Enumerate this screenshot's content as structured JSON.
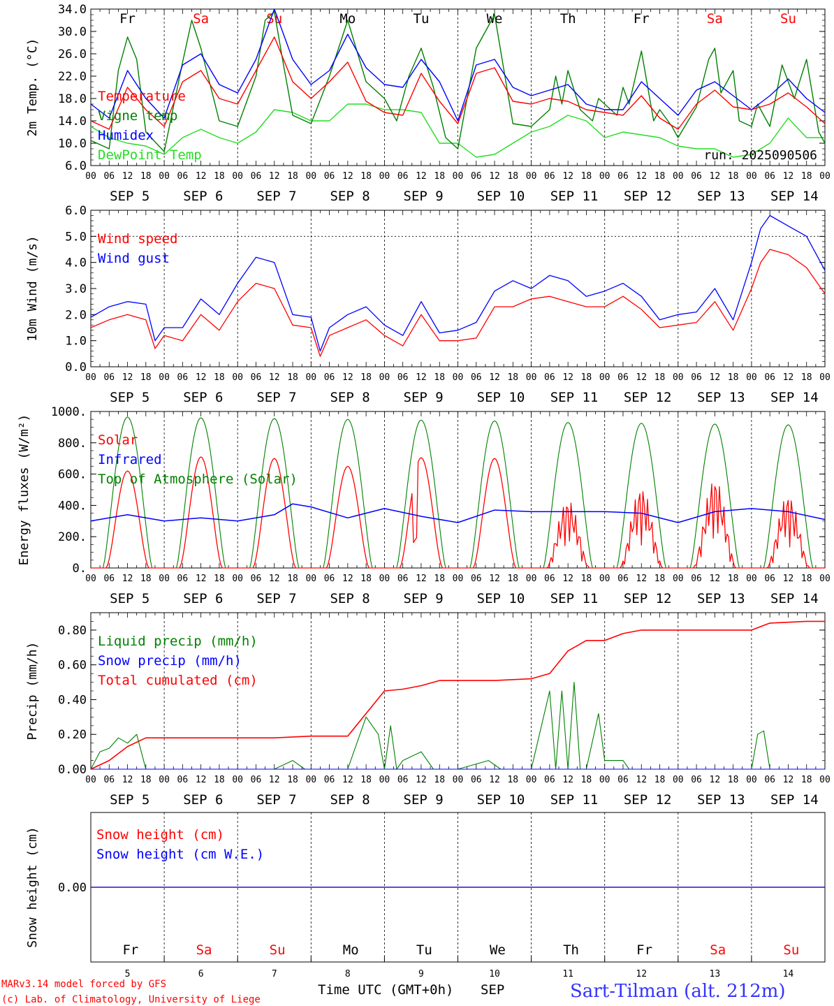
{
  "days": [
    "SEP 5",
    "SEP 6",
    "SEP 7",
    "SEP 8",
    "SEP 9",
    "SEP 10",
    "SEP 11",
    "SEP 12",
    "SEP 13",
    "SEP 14"
  ],
  "weekdays": [
    {
      "label": "Fr",
      "weekend": false
    },
    {
      "label": "Sa",
      "weekend": true
    },
    {
      "label": "Su",
      "weekend": true
    },
    {
      "label": "Mo",
      "weekend": false
    },
    {
      "label": "Tu",
      "weekend": false
    },
    {
      "label": "We",
      "weekend": false
    },
    {
      "label": "Th",
      "weekend": false
    },
    {
      "label": "Fr",
      "weekend": false
    },
    {
      "label": "Sa",
      "weekend": true
    },
    {
      "label": "Su",
      "weekend": true
    }
  ],
  "hour_ticks": [
    "00",
    "06",
    "12",
    "18"
  ],
  "run_label": "run: 2025090506",
  "footer": {
    "credit_1": "MARv3.14 model forced by GFS",
    "credit_2": "(c) Lab. of Climatology, University of Liege",
    "axis_title": "Time UTC (GMT+0h)",
    "month": "SEP",
    "station": "Sart-Tilman (alt. 212m)",
    "day_numbers": [
      "5",
      "6",
      "7",
      "8",
      "9",
      "10",
      "11",
      "12",
      "13",
      "14"
    ]
  },
  "colors": {
    "red": "#ff0000",
    "green": "#008000",
    "blue": "#0000ff",
    "lightgreen": "#22dd22",
    "axis": "#000000"
  },
  "chart_data": [
    {
      "type": "line",
      "ylabel": "2m Temp. (°C)",
      "ylim": [
        6,
        34
      ],
      "yticks": [
        "34.0",
        "30.0",
        "26.0",
        "22.0",
        "18.0",
        "14.0",
        "10.0",
        "6.0"
      ],
      "x_unit": "hours since 00 UTC SEP 5",
      "series": [
        {
          "name": "Temperature",
          "color": "#ff0000",
          "x": [
            0,
            6,
            12,
            18,
            24,
            30,
            36,
            42,
            48,
            54,
            60,
            66,
            72,
            78,
            84,
            90,
            96,
            102,
            108,
            114,
            120,
            126,
            132,
            138,
            144,
            150,
            156,
            162,
            168,
            174,
            180,
            186,
            192,
            198,
            204,
            210,
            216,
            222,
            228,
            234,
            240
          ],
          "y": [
            14,
            12.5,
            20,
            16,
            13,
            21,
            23,
            18,
            17,
            23,
            29,
            21,
            18,
            21,
            24.5,
            17.5,
            15.5,
            15,
            22.5,
            17.5,
            13.5,
            22.5,
            23.5,
            17.5,
            17,
            18,
            17.5,
            16,
            15.5,
            15,
            18.5,
            14.5,
            12.5,
            17,
            19.5,
            16.5,
            16,
            17,
            19,
            16.5,
            13.5
          ]
        },
        {
          "name": "Vigne temp",
          "color": "#008000",
          "x": [
            0,
            6,
            9,
            12,
            15,
            18,
            24,
            30,
            33,
            36,
            42,
            48,
            54,
            57,
            60,
            63,
            66,
            72,
            78,
            84,
            90,
            96,
            100,
            104,
            108,
            112,
            116,
            120,
            126,
            132,
            138,
            144,
            150,
            152,
            154,
            156,
            160,
            164,
            166,
            168,
            172,
            174,
            176,
            180,
            184,
            186,
            190,
            192,
            198,
            202,
            204,
            206,
            210,
            212,
            216,
            218,
            220,
            222,
            226,
            230,
            234,
            238,
            240
          ],
          "y": [
            10.5,
            9,
            23,
            29,
            25,
            12,
            8.5,
            24.5,
            32,
            27,
            14,
            13,
            22,
            32,
            33.5,
            24,
            15,
            13.5,
            22,
            32,
            21,
            18,
            14,
            22,
            27,
            20,
            11,
            9,
            27,
            33,
            13.5,
            13,
            16,
            22,
            17,
            23,
            16,
            14,
            18,
            17,
            15,
            20,
            17,
            26.5,
            14,
            16,
            13,
            11,
            16.5,
            25,
            27,
            19,
            23,
            14,
            13,
            17,
            15,
            13,
            24,
            18,
            25,
            12,
            10
          ]
        },
        {
          "name": "Humidex",
          "color": "#0000ff",
          "x": [
            0,
            6,
            12,
            18,
            24,
            30,
            36,
            42,
            48,
            54,
            60,
            66,
            72,
            78,
            84,
            90,
            96,
            102,
            108,
            114,
            120,
            126,
            132,
            138,
            144,
            150,
            156,
            162,
            168,
            174,
            180,
            186,
            192,
            198,
            204,
            210,
            216,
            222,
            228,
            234,
            240
          ],
          "y": [
            17,
            14.5,
            23,
            18,
            14.5,
            24,
            26,
            20.5,
            19,
            25,
            34,
            25,
            20.5,
            23,
            29.5,
            23.5,
            20.5,
            20,
            25,
            21,
            14,
            24,
            25,
            20,
            18.5,
            19.5,
            20.5,
            17,
            16,
            16,
            21,
            18,
            15,
            19.5,
            21,
            18.5,
            16,
            18.5,
            21.5,
            18,
            15.5
          ]
        },
        {
          "name": "DewPoint Temp",
          "color": "#22dd22",
          "x": [
            0,
            6,
            12,
            18,
            24,
            30,
            36,
            42,
            48,
            54,
            60,
            66,
            72,
            78,
            84,
            90,
            96,
            102,
            108,
            114,
            120,
            126,
            132,
            138,
            144,
            150,
            156,
            162,
            168,
            174,
            180,
            186,
            192,
            198,
            204,
            210,
            216,
            222,
            228,
            234,
            240
          ],
          "y": [
            13,
            11,
            10,
            9.5,
            8,
            11,
            12.5,
            11,
            10,
            12,
            16,
            15.5,
            14,
            14,
            17,
            17,
            16,
            16,
            15.5,
            10,
            10,
            7.5,
            8,
            10,
            12,
            13,
            15,
            14,
            11,
            12,
            11.5,
            11,
            9.5,
            9,
            9,
            7.5,
            8,
            10,
            14.5,
            11,
            11
          ]
        }
      ],
      "annotations": [
        "run: 2025090506"
      ]
    },
    {
      "type": "line",
      "ylabel": "10m Wind (m/s)",
      "ylim": [
        0,
        6
      ],
      "yticks": [
        "6.0",
        "5.0",
        "4.0",
        "3.0",
        "2.0",
        "1.0",
        "0.0"
      ],
      "reference_line": 5.0,
      "series": [
        {
          "name": "Wind speed",
          "color": "#ff0000",
          "x": [
            0,
            6,
            12,
            18,
            21,
            24,
            30,
            36,
            42,
            48,
            54,
            60,
            66,
            72,
            75,
            78,
            84,
            90,
            96,
            102,
            108,
            114,
            120,
            126,
            132,
            138,
            144,
            150,
            156,
            162,
            168,
            174,
            180,
            186,
            192,
            198,
            204,
            210,
            216,
            219,
            222,
            228,
            234,
            240
          ],
          "y": [
            1.5,
            1.8,
            2,
            1.8,
            0.7,
            1.2,
            1,
            2,
            1.4,
            2.5,
            3.2,
            3,
            1.6,
            1.5,
            0.4,
            1.2,
            1.5,
            1.8,
            1.2,
            0.8,
            2,
            1,
            1,
            1.1,
            2.3,
            2.3,
            2.6,
            2.7,
            2.5,
            2.3,
            2.3,
            2.7,
            2.2,
            1.5,
            1.6,
            1.7,
            2.5,
            1.4,
            3,
            4,
            4.5,
            4.3,
            3.8,
            2.8
          ]
        },
        {
          "name": "Wind gust",
          "color": "#0000ff",
          "x": [
            0,
            6,
            12,
            18,
            21,
            24,
            30,
            36,
            42,
            48,
            54,
            60,
            66,
            72,
            75,
            78,
            84,
            90,
            96,
            102,
            108,
            114,
            120,
            126,
            132,
            138,
            144,
            150,
            156,
            162,
            168,
            174,
            180,
            186,
            192,
            198,
            204,
            210,
            216,
            219,
            222,
            228,
            234,
            240
          ],
          "y": [
            1.9,
            2.3,
            2.5,
            2.4,
            1,
            1.5,
            1.5,
            2.6,
            2,
            3.2,
            4.2,
            4,
            2,
            1.9,
            0.6,
            1.5,
            2,
            2.3,
            1.6,
            1.2,
            2.5,
            1.3,
            1.4,
            1.7,
            2.9,
            3.3,
            3,
            3.5,
            3.3,
            2.7,
            2.9,
            3.2,
            2.7,
            1.8,
            2,
            2.1,
            3,
            1.8,
            4,
            5.3,
            5.8,
            5.4,
            5,
            3.7
          ]
        }
      ]
    },
    {
      "type": "line",
      "ylabel": "Energy fluxes (W/m²)",
      "ylim": [
        0,
        1000
      ],
      "yticks": [
        "1000.",
        "800.",
        "600.",
        "400.",
        "200.",
        "0."
      ],
      "series": [
        {
          "name": "Solar",
          "color": "#ff0000",
          "peaks": [
            620,
            710,
            700,
            650,
            705,
            700,
            440,
            520,
            580,
            470
          ]
        },
        {
          "name": "Infrared",
          "color": "#0000ff",
          "x": [
            0,
            12,
            24,
            36,
            48,
            60,
            66,
            72,
            84,
            96,
            108,
            120,
            132,
            144,
            156,
            168,
            180,
            192,
            204,
            216,
            228,
            240
          ],
          "y": [
            300,
            340,
            300,
            320,
            300,
            340,
            410,
            390,
            320,
            380,
            330,
            290,
            370,
            360,
            360,
            360,
            350,
            290,
            360,
            380,
            360,
            310
          ]
        },
        {
          "name": "Top of Atmosphere (Solar)",
          "color": "#008000",
          "peaks": [
            965,
            960,
            955,
            950,
            945,
            940,
            930,
            925,
            920,
            915
          ]
        }
      ]
    },
    {
      "type": "line",
      "ylabel": "Precip (mm/h)",
      "ylim": [
        0,
        0.9
      ],
      "yticks": [
        "0.80",
        "0.60",
        "0.40",
        "0.20",
        "0.00"
      ],
      "series": [
        {
          "name": "Liquid precip (mm/h)",
          "color": "#008000",
          "x": [
            0,
            3,
            6,
            9,
            12,
            15,
            18,
            21,
            24,
            60,
            66,
            70,
            72,
            84,
            90,
            94,
            96,
            98,
            100,
            102,
            108,
            112,
            116,
            120,
            130,
            134,
            136,
            144,
            150,
            152,
            154,
            156,
            158,
            160,
            162,
            166,
            168,
            174,
            176,
            178,
            182,
            186,
            216,
            218,
            220,
            222,
            226,
            240
          ],
          "y": [
            0,
            0.1,
            0.12,
            0.18,
            0.15,
            0.2,
            0,
            0,
            0,
            0,
            0.05,
            0,
            0,
            0,
            0.3,
            0.2,
            0,
            0.25,
            0,
            0.05,
            0.1,
            0,
            0,
            0,
            0.05,
            0,
            0,
            0,
            0.45,
            0,
            0.45,
            0,
            0.5,
            0,
            0,
            0.32,
            0.05,
            0.05,
            0,
            0,
            0,
            0,
            0,
            0.2,
            0.22,
            0,
            0,
            0
          ]
        },
        {
          "name": "Snow precip (mm/h)",
          "color": "#0000ff",
          "x": [
            0,
            240
          ],
          "y": [
            0,
            0
          ]
        },
        {
          "name": "Total cumulated (cm)",
          "color": "#ff0000",
          "x": [
            0,
            6,
            12,
            18,
            24,
            60,
            72,
            84,
            90,
            96,
            102,
            108,
            114,
            120,
            132,
            144,
            150,
            156,
            162,
            168,
            174,
            180,
            192,
            204,
            216,
            222,
            234,
            240
          ],
          "y": [
            0,
            0.05,
            0.13,
            0.18,
            0.18,
            0.18,
            0.19,
            0.19,
            0.32,
            0.45,
            0.46,
            0.48,
            0.51,
            0.51,
            0.51,
            0.52,
            0.55,
            0.68,
            0.74,
            0.74,
            0.78,
            0.8,
            0.8,
            0.8,
            0.8,
            0.84,
            0.85,
            0.85
          ]
        }
      ]
    },
    {
      "type": "line",
      "ylabel": "Snow height (cm)",
      "yticks": [
        "0.00"
      ],
      "series": [
        {
          "name": "Snow height (cm)",
          "color": "#ff0000",
          "x": [
            0,
            240
          ],
          "y": [
            0,
            0
          ]
        },
        {
          "name": "Snow height (cm W.E.)",
          "color": "#0000ff",
          "x": [
            0,
            240
          ],
          "y": [
            0,
            0
          ]
        }
      ]
    }
  ]
}
